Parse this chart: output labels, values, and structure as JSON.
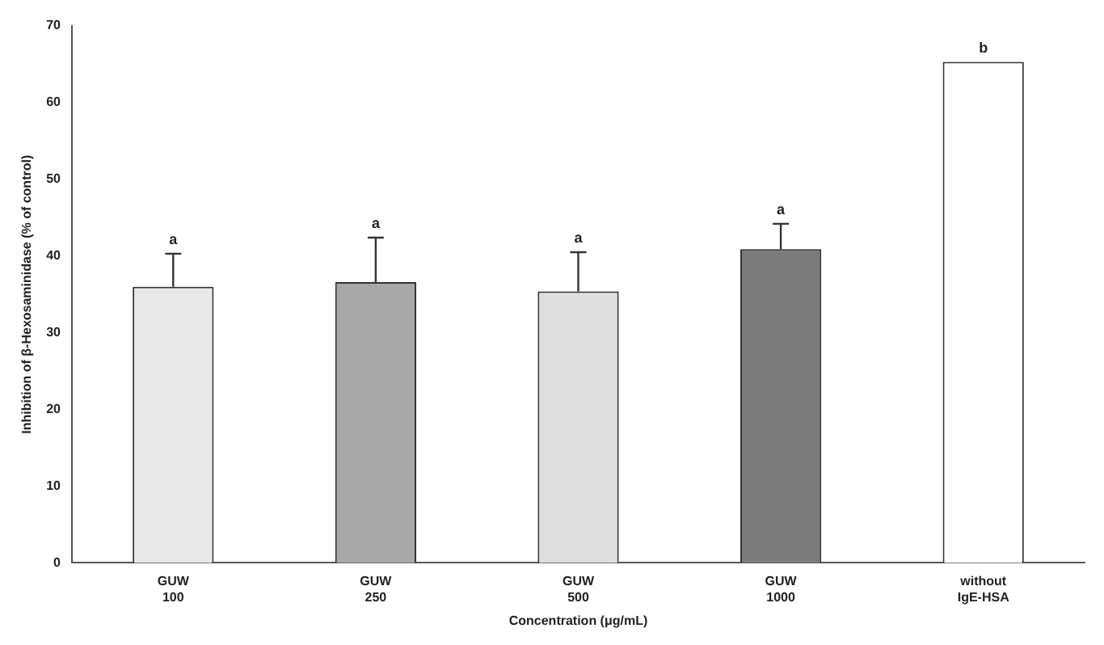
{
  "chart_data": {
    "type": "bar",
    "xlabel": "Concentration (μg/mL)",
    "ylabel": "Inhibition of β-Hexosaminidase (% of control)",
    "categories": [
      "GUW 100",
      "GUW 250",
      "GUW 500",
      "GUW 1000",
      "without IgE-HSA"
    ],
    "values": [
      36.0,
      36.6,
      35.4,
      40.9,
      65.3
    ],
    "errors": [
      [
        36.0,
        40.3
      ],
      [
        36.6,
        42.4
      ],
      [
        35.4,
        40.5
      ],
      [
        40.9,
        44.2
      ],
      null
    ],
    "colors": [
      "#e8e8e8",
      "#a8a8a8",
      "#dedede",
      "#7a7a7a",
      "#ffffff"
    ],
    "ylim": [
      0,
      70
    ],
    "yticks": [
      0,
      10,
      20,
      30,
      40,
      50,
      60,
      70
    ],
    "annotations": [
      {
        "text": "a",
        "x": "GUW 100",
        "y": 40.3
      },
      {
        "text": "a",
        "x": "GUW 250",
        "y": 42.4
      },
      {
        "text": "a",
        "x": "GUW 500",
        "y": 40.5
      },
      {
        "text": "a",
        "x": "GUW 1000",
        "y": 44.2
      },
      {
        "text": "b",
        "x": "without IgE-HSA",
        "y": 65.3
      }
    ],
    "grid": false,
    "legend": false
  }
}
